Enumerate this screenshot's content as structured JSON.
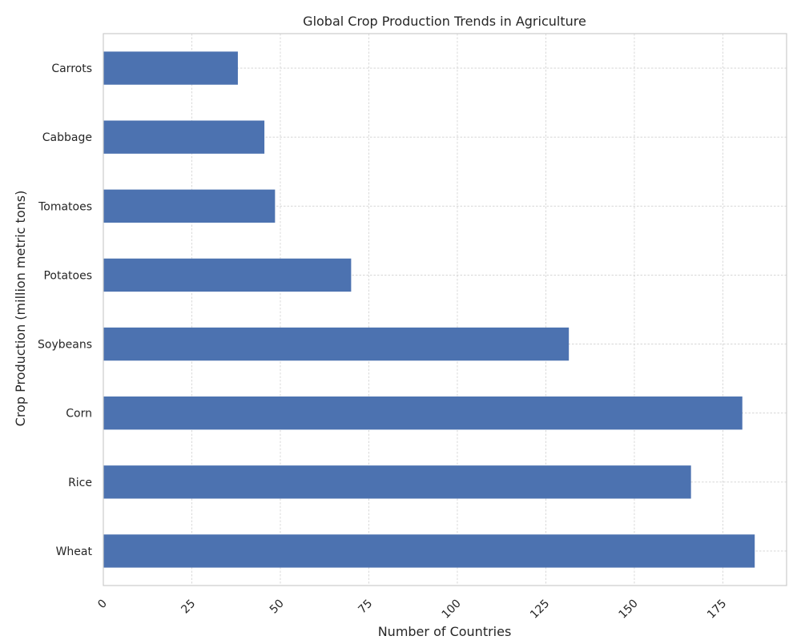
{
  "chart_data": {
    "type": "bar",
    "orientation": "horizontal",
    "title": "Global Crop Production Trends in Agriculture",
    "xlabel": "Number of Countries",
    "ylabel": "Crop Production (million metric tons)",
    "categories": [
      "Wheat",
      "Rice",
      "Corn",
      "Soybeans",
      "Potatoes",
      "Tomatoes",
      "Cabbage",
      "Carrots"
    ],
    "values": [
      184,
      166,
      180.5,
      131.5,
      70,
      48.5,
      45.5,
      38
    ],
    "xlim": [
      0,
      193
    ],
    "xticks": [
      0,
      25,
      50,
      75,
      100,
      125,
      150,
      175
    ],
    "xtick_rotation": 45,
    "grid": true,
    "legend": "none",
    "colors": {
      "bar": "#4c72b0",
      "grid": "#d0d0d0",
      "spine": "#cccccc",
      "text": "#262626"
    }
  }
}
